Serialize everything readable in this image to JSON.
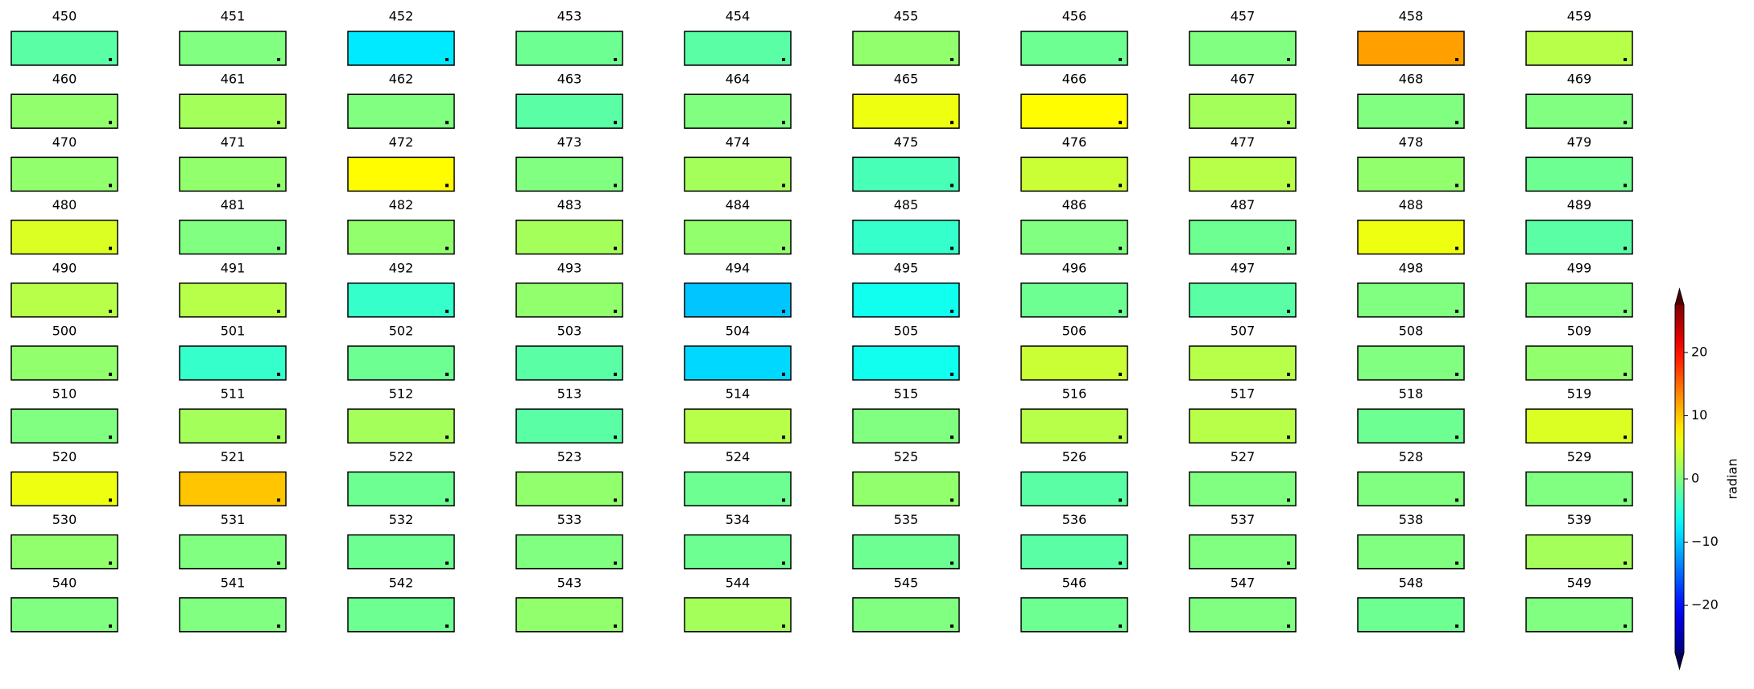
{
  "chart_data": {
    "type": "heatmap-grid",
    "titles": [
      "450",
      "451",
      "452",
      "453",
      "454",
      "455",
      "456",
      "457",
      "458",
      "459",
      "460",
      "461",
      "462",
      "463",
      "464",
      "465",
      "466",
      "467",
      "468",
      "469",
      "470",
      "471",
      "472",
      "473",
      "474",
      "475",
      "476",
      "477",
      "478",
      "479",
      "480",
      "481",
      "482",
      "483",
      "484",
      "485",
      "486",
      "487",
      "488",
      "489",
      "490",
      "491",
      "492",
      "493",
      "494",
      "495",
      "496",
      "497",
      "498",
      "499",
      "500",
      "501",
      "502",
      "503",
      "504",
      "505",
      "506",
      "507",
      "508",
      "509",
      "510",
      "511",
      "512",
      "513",
      "514",
      "515",
      "516",
      "517",
      "518",
      "519",
      "520",
      "521",
      "522",
      "523",
      "524",
      "525",
      "526",
      "527",
      "528",
      "529",
      "530",
      "531",
      "532",
      "533",
      "534",
      "535",
      "536",
      "537",
      "538",
      "539",
      "540",
      "541",
      "542",
      "543",
      "544",
      "545",
      "546",
      "547",
      "548",
      "549"
    ],
    "values": [
      -2,
      0,
      -8,
      -1,
      -2,
      1,
      -1,
      0,
      12,
      3,
      1,
      2,
      0,
      -2,
      0,
      6,
      7,
      2,
      0,
      0,
      1,
      1,
      7,
      0,
      2,
      -3,
      4,
      3,
      1,
      -1,
      5,
      0,
      1,
      2,
      1,
      -4,
      0,
      -1,
      6,
      -2,
      3,
      3,
      -4,
      1,
      -10,
      -6,
      -1,
      -2,
      0,
      0,
      1,
      -4,
      -1,
      -2,
      -9,
      -6,
      4,
      3,
      0,
      1,
      0,
      2,
      2,
      -2,
      3,
      0,
      3,
      3,
      -1,
      5,
      6,
      10,
      -1,
      1,
      -1,
      1,
      -2,
      0,
      0,
      0,
      1,
      0,
      -1,
      0,
      -1,
      -1,
      -2,
      0,
      0,
      2,
      0,
      0,
      -1,
      1,
      2,
      0,
      -1,
      0,
      -1,
      0
    ],
    "colormap": "jet",
    "colorbar": {
      "label": "radian",
      "lim": [
        -27.5,
        27.5
      ],
      "extend": "both",
      "ticks": [
        {
          "value": -20,
          "label": "−20"
        },
        {
          "value": -10,
          "label": "−10"
        },
        0,
        10,
        20
      ]
    }
  }
}
